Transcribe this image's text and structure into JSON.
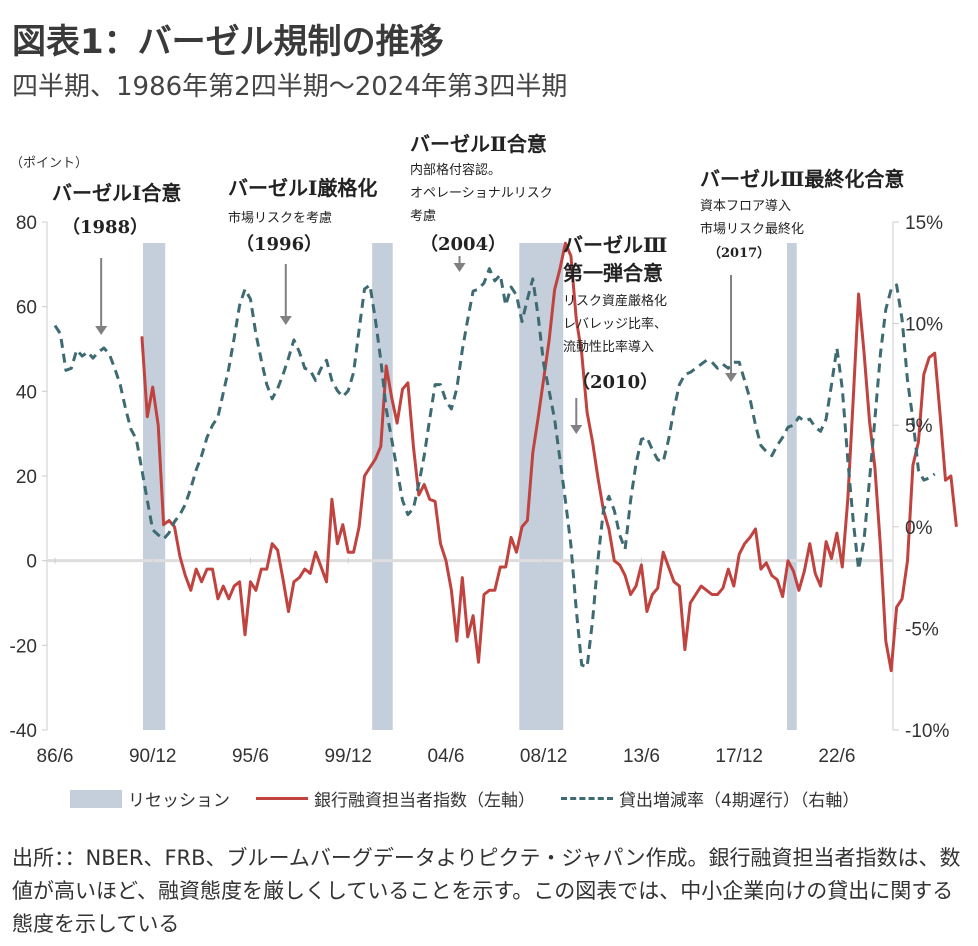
{
  "header": {
    "title": "図表1：バーゼル規制の推移",
    "subtitle": "四半期、1986年第2四半期～2024年第3四半期",
    "unit_label": "（ポイント）"
  },
  "colors": {
    "recession": "#c5cfdb",
    "lending_index": "#c0433f",
    "loan_growth": "#3e6b72",
    "arrow": "#808080",
    "zero_line": "#dddddd",
    "axis": "#cccccc"
  },
  "chart_data": {
    "type": "line",
    "title": "図表1：バーゼル規制の推移",
    "subtitle": "四半期、1986年第2四半期～2024年第3四半期",
    "x_start": "1986Q2",
    "x_end": "2024Q3",
    "x_tick_labels": [
      "86/6",
      "90/12",
      "95/6",
      "99/12",
      "04/6",
      "08/12",
      "13/6",
      "17/12",
      "22/6"
    ],
    "x_tick_quarters": [
      0,
      18,
      36,
      54,
      72,
      90,
      108,
      126,
      144
    ],
    "left_axis": {
      "label": "（ポイント）",
      "range": [
        -40,
        80
      ],
      "ticks": [
        80,
        60,
        40,
        20,
        0,
        -20,
        -40
      ],
      "tick_labels": [
        "80",
        "60",
        "40",
        "20",
        "0",
        "-20",
        "-40"
      ]
    },
    "right_axis": {
      "label": "",
      "range": [
        -10,
        15
      ],
      "ticks": [
        15,
        10,
        5,
        0,
        -5,
        -10
      ],
      "tick_labels": [
        "15%",
        "10%",
        "5%",
        "0%",
        "-5%",
        "-10%"
      ]
    },
    "recessions": [
      {
        "start_q": 16.2,
        "end_q": 20.3,
        "label": "1990-91"
      },
      {
        "start_q": 58.4,
        "end_q": 62.2,
        "label": "2001"
      },
      {
        "start_q": 85.5,
        "end_q": 93.6,
        "label": "2007-09"
      },
      {
        "start_q": 134.8,
        "end_q": 136.6,
        "label": "2020"
      }
    ],
    "series": [
      {
        "name": "銀行融資担当者指数（左軸）",
        "axis": "left",
        "style": "solid",
        "start_q": 16,
        "values": [
          53,
          34,
          41,
          32,
          8.5,
          9.5,
          8,
          1,
          -3.5,
          -7,
          -2,
          -5,
          -2,
          -2,
          -9,
          -6,
          -9,
          -6,
          -5,
          -17.5,
          -5,
          -7,
          -2,
          -2,
          4,
          2.5,
          -4.5,
          -12,
          -5,
          -4,
          -2,
          -3,
          2,
          -1.5,
          -5,
          14.5,
          4,
          8.5,
          2,
          2,
          8,
          20,
          22,
          24,
          27,
          46,
          38.5,
          32.5,
          40.5,
          42,
          27,
          15.5,
          18,
          14.5,
          14,
          4,
          0,
          -7,
          -19,
          -4,
          -18,
          -13,
          -24,
          -8,
          -7,
          -7,
          -1.5,
          -1.5,
          5.5,
          2,
          8,
          9.5,
          25.5,
          34,
          43,
          52,
          64,
          69,
          75,
          72,
          57,
          49,
          35,
          28,
          19.5,
          12,
          7.5,
          0,
          -1,
          -3.5,
          -8,
          -6,
          -1,
          -12,
          -8,
          -6.5,
          2,
          -1.5,
          -5,
          -6,
          -21,
          -10,
          -8,
          -6,
          -7,
          -8,
          -8,
          -6.5,
          -2,
          -6,
          1.5,
          4,
          5.5,
          7.5,
          -2,
          -0.5,
          -3.5,
          -4.5,
          -8.5,
          0,
          -2.5,
          -7,
          -2.5,
          4,
          -3,
          -6,
          4.5,
          0.5,
          6.5,
          -1.5,
          14.5,
          38,
          63,
          49,
          33,
          22,
          3.5,
          -19,
          -26,
          -11,
          -9,
          0,
          22.5,
          28,
          44,
          48,
          49,
          34.5,
          19,
          20,
          8
        ]
      },
      {
        "name": "貸出増減率（4期遅行）（右軸）",
        "axis": "right",
        "style": "dashed",
        "start_q": 0,
        "values": [
          9.9,
          9.5,
          7.7,
          7.8,
          8.7,
          8.4,
          8.6,
          8.3,
          8.6,
          8.8,
          8.5,
          7.8,
          7.0,
          5.8,
          4.8,
          4.3,
          2.8,
          1.3,
          -0.15,
          -0.4,
          -0.6,
          -0.3,
          0.25,
          0.6,
          1.1,
          1.9,
          2.8,
          3.5,
          4.4,
          5.0,
          5.4,
          6.6,
          7.8,
          9.3,
          10.9,
          11.7,
          11.2,
          9.5,
          8.2,
          7.0,
          6.3,
          6.8,
          7.5,
          8.3,
          9.2,
          8.6,
          7.8,
          7.7,
          7.2,
          7.8,
          8.2,
          7.2,
          6.7,
          6.4,
          6.7,
          7.6,
          9.7,
          11.7,
          11.9,
          10.2,
          8.2,
          5.8,
          4.3,
          2.8,
          1.3,
          0.6,
          0.9,
          2.1,
          3.5,
          5.3,
          7.0,
          7.0,
          6.2,
          5.8,
          6.8,
          8.7,
          10.2,
          11.6,
          11.7,
          12.0,
          12.7,
          12.1,
          12.4,
          10.9,
          11.8,
          11.4,
          10.1,
          11.2,
          12.2,
          10.3,
          8.0,
          6.7,
          5.3,
          3.3,
          1.3,
          -0.9,
          -4.1,
          -6.8,
          -6.9,
          -4.6,
          -1.6,
          0.8,
          1.5,
          0.8,
          -0.4,
          -1.1,
          1.3,
          3.1,
          4.3,
          4.4,
          3.8,
          3.3,
          3.2,
          4.3,
          5.8,
          7.0,
          7.5,
          7.6,
          7.8,
          8.0,
          8.2,
          8.1,
          7.8,
          8.0,
          7.8,
          8.1,
          8.1,
          7.2,
          6.3,
          5.0,
          4.0,
          3.7,
          3.5,
          4.0,
          4.4,
          4.9,
          5.0,
          5.4,
          5.2,
          5.3,
          4.9,
          4.7,
          5.3,
          7.0,
          8.8,
          6.8,
          3.3,
          0.3,
          -2.1,
          -0.6,
          2.3,
          5.3,
          8.5,
          10.7,
          11.7,
          11.9,
          10.2,
          7.2,
          5.3,
          2.8,
          2.3,
          2.4,
          2.6
        ]
      }
    ],
    "annotations": [
      {
        "id": "basel1",
        "heading": "バーゼルⅠ合意",
        "lines": [],
        "year": "（1988）",
        "arrow_q": 8.5
      },
      {
        "id": "basel1-strict",
        "heading": "バーゼルⅠ厳格化",
        "lines": [
          "市場リスクを考慮"
        ],
        "year": "（1996）",
        "arrow_q": 42.5
      },
      {
        "id": "basel2",
        "heading": "バーゼルⅡ合意",
        "lines": [
          "内部格付容認。",
          "オペレーショナルリスク",
          "考慮"
        ],
        "year": "（2004）",
        "arrow_q": 74.5
      },
      {
        "id": "basel3-first",
        "heading": "バーゼルⅢ",
        "heading2": "第一弾合意",
        "lines": [
          "リスク資産厳格化",
          "レバレッジ比率、",
          "流動性比率導入"
        ],
        "year": "（2010）",
        "arrow_q": 96
      },
      {
        "id": "basel3-final",
        "heading": "バーゼルⅢ最終化合意",
        "lines": [
          "資本フロア導入",
          "市場リスク最終化"
        ],
        "year": "（2017）",
        "arrow_q": 124.5
      }
    ],
    "legend": {
      "placement": "bottom",
      "items": [
        {
          "label": "リセッション",
          "kind": "area"
        },
        {
          "label": "銀行融資担当者指数（左軸）",
          "kind": "solid"
        },
        {
          "label": "貸出増減率（4期遅行）（右軸）",
          "kind": "dashed"
        }
      ]
    },
    "grid": false
  },
  "footnote": "出所：：NBER、FRB、ブルームバーグデータよりピクテ・ジャパン作成。銀行融資担当者指数は、数値が高いほど、融資態度を厳しくしていることを示す。この図表では、中小企業向けの貸出に関する態度を示している"
}
